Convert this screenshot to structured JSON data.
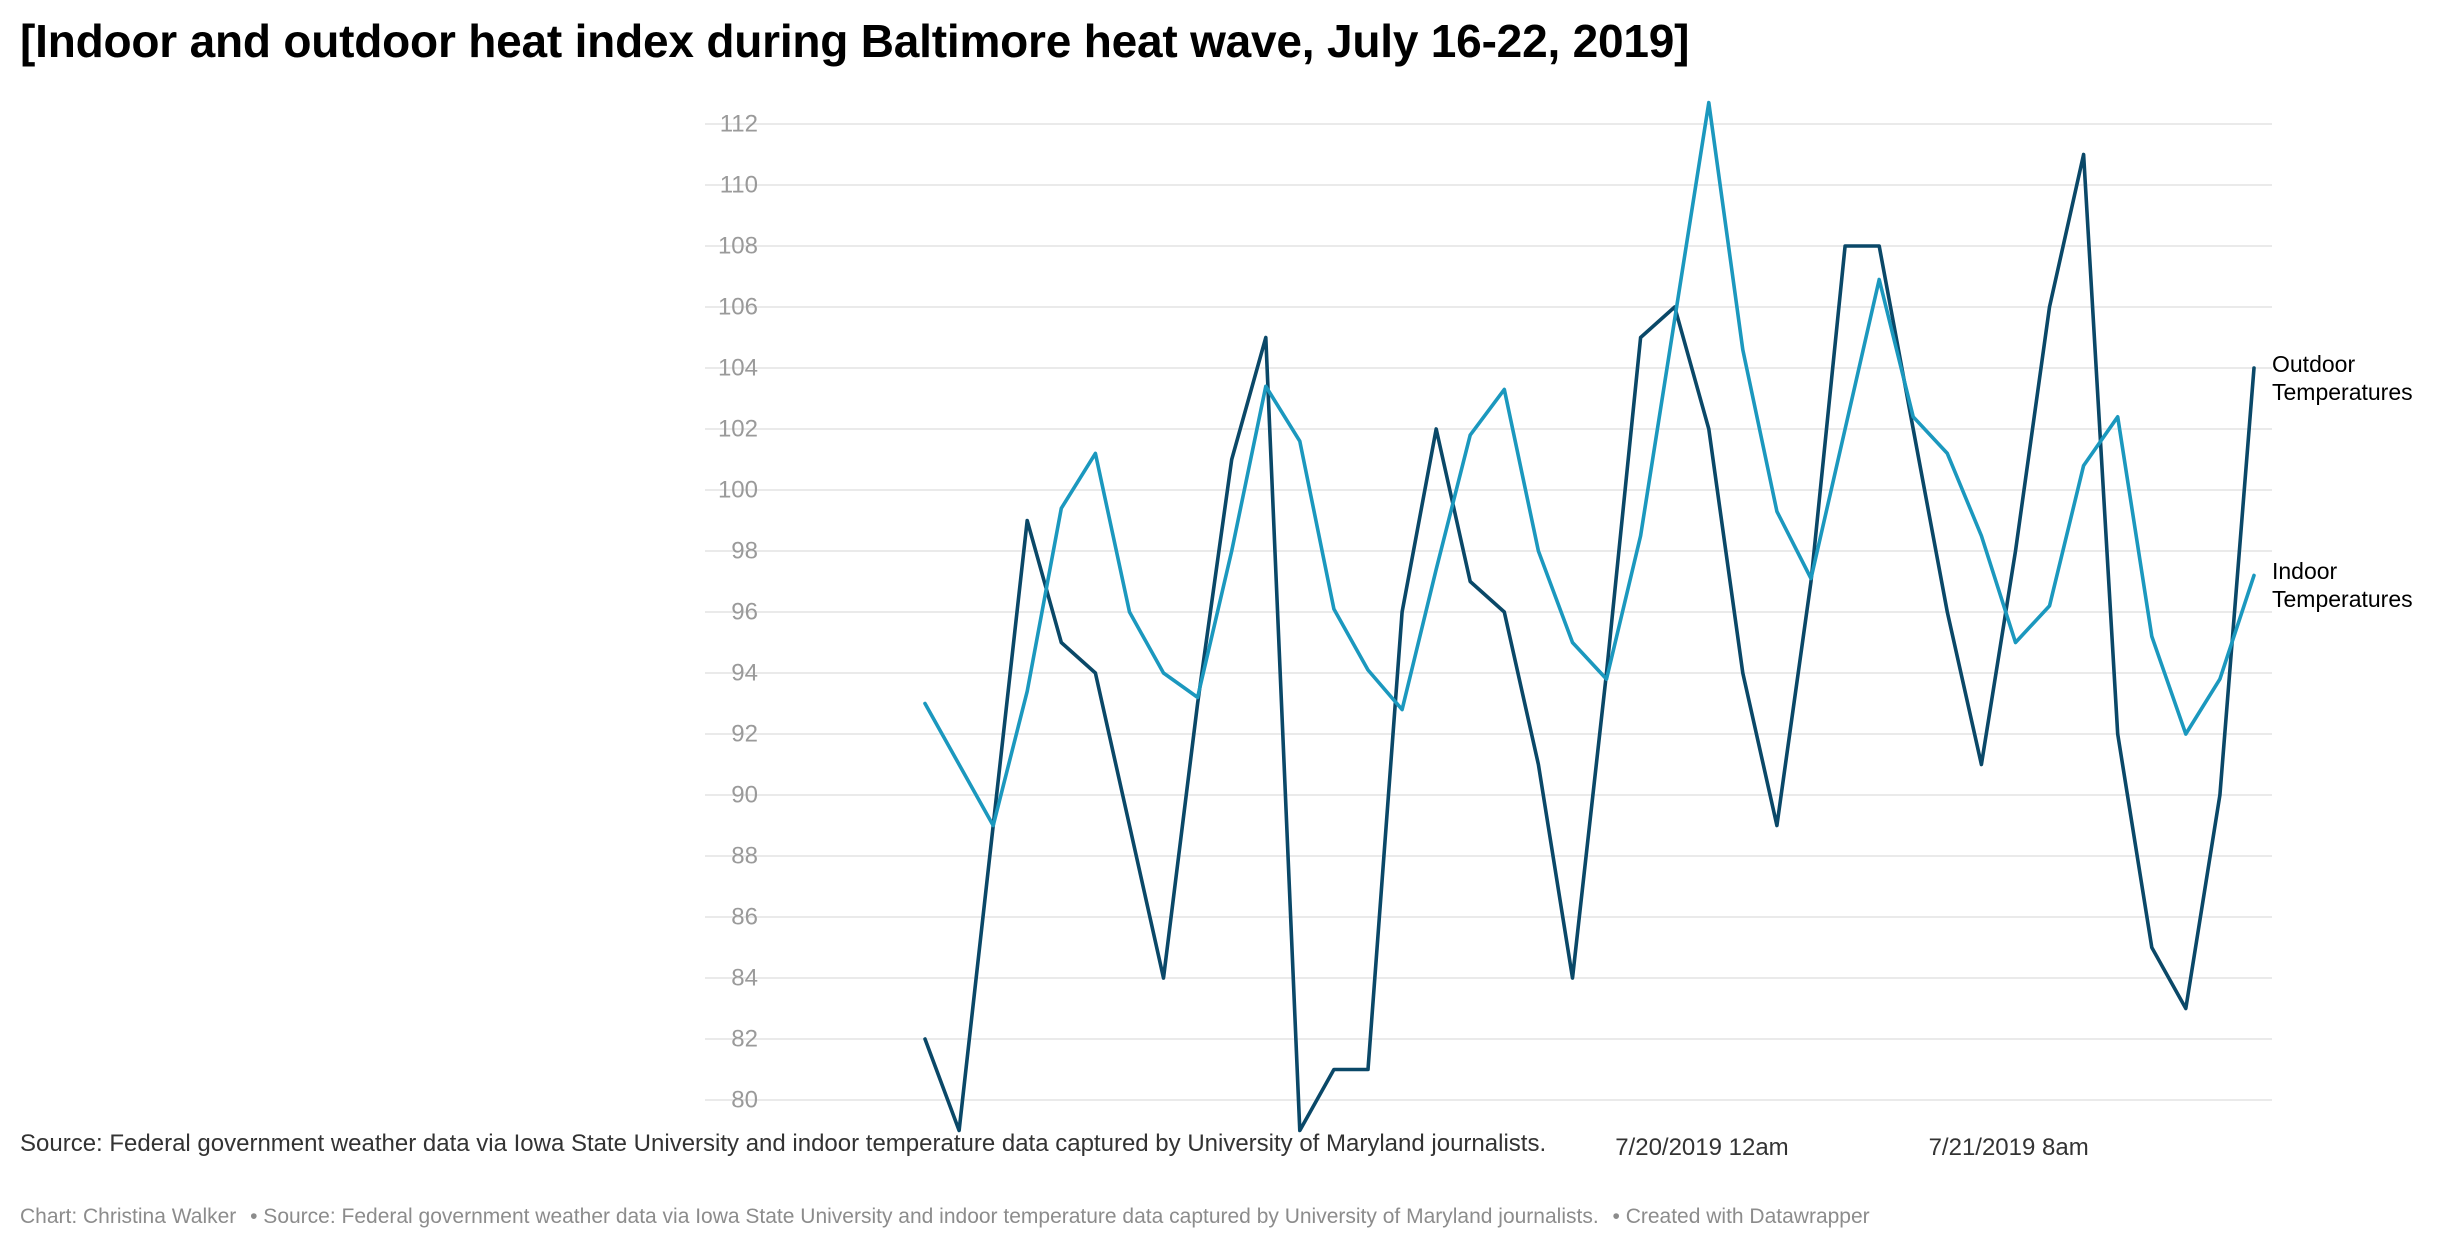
{
  "title": "[Indoor and outdoor heat index during Baltimore heat wave, July 16-22, 2019]",
  "source_note": "Source: Federal government weather data via Iowa State University and indoor temperature data captured by University of Maryland journalists.",
  "footer": {
    "credit": "Chart: Christina Walker",
    "source": "• Source: Federal government weather data via Iowa State University and indoor temperature data captured by University of Maryland journalists.",
    "created": "• Created with Datawrapper"
  },
  "colors": {
    "outdoor": "#0a4868",
    "indoor": "#1b98be",
    "grid": "#e4e4e4",
    "tick": "#9a9a9a"
  },
  "chart_data": {
    "type": "line",
    "title": "[Indoor and outdoor heat index during Baltimore heat wave, July 16-22, 2019]",
    "xlabel": "",
    "ylabel": "",
    "ylim": [
      79,
      113
    ],
    "yticks": [
      80,
      82,
      84,
      86,
      88,
      90,
      92,
      94,
      96,
      98,
      100,
      102,
      104,
      106,
      108,
      110,
      112
    ],
    "x_tick_labels": [
      {
        "index": 22.8,
        "label": "7/20/2019 12am"
      },
      {
        "index": 31.8,
        "label": "7/21/2019 8am"
      }
    ],
    "grid": true,
    "legend": "direct-labels-right",
    "series": [
      {
        "name": "Outdoor Temperatures",
        "color": "#0a4868",
        "values": [
          82,
          79,
          89,
          99,
          95,
          94,
          89,
          84,
          93,
          101,
          105,
          79,
          81,
          81,
          96,
          102,
          97,
          96,
          91,
          84,
          94,
          105,
          106,
          102,
          94,
          89,
          97,
          108,
          108,
          102,
          96,
          91,
          98,
          106,
          111,
          92,
          85,
          83,
          90,
          104
        ]
      },
      {
        "name": "Indoor Temperatures",
        "color": "#1b98be",
        "values": [
          93,
          91,
          89,
          93.4,
          99.4,
          101.2,
          96,
          94,
          93.2,
          98,
          103.4,
          101.6,
          96.1,
          94.1,
          92.8,
          97.4,
          101.8,
          103.3,
          98,
          95,
          93.8,
          98.5,
          105.6,
          112.7,
          104.6,
          99.3,
          97.1,
          102,
          106.9,
          102.4,
          101.2,
          98.5,
          95,
          96.2,
          100.8,
          102.4,
          95.2,
          92,
          93.8,
          97.2
        ]
      }
    ]
  }
}
